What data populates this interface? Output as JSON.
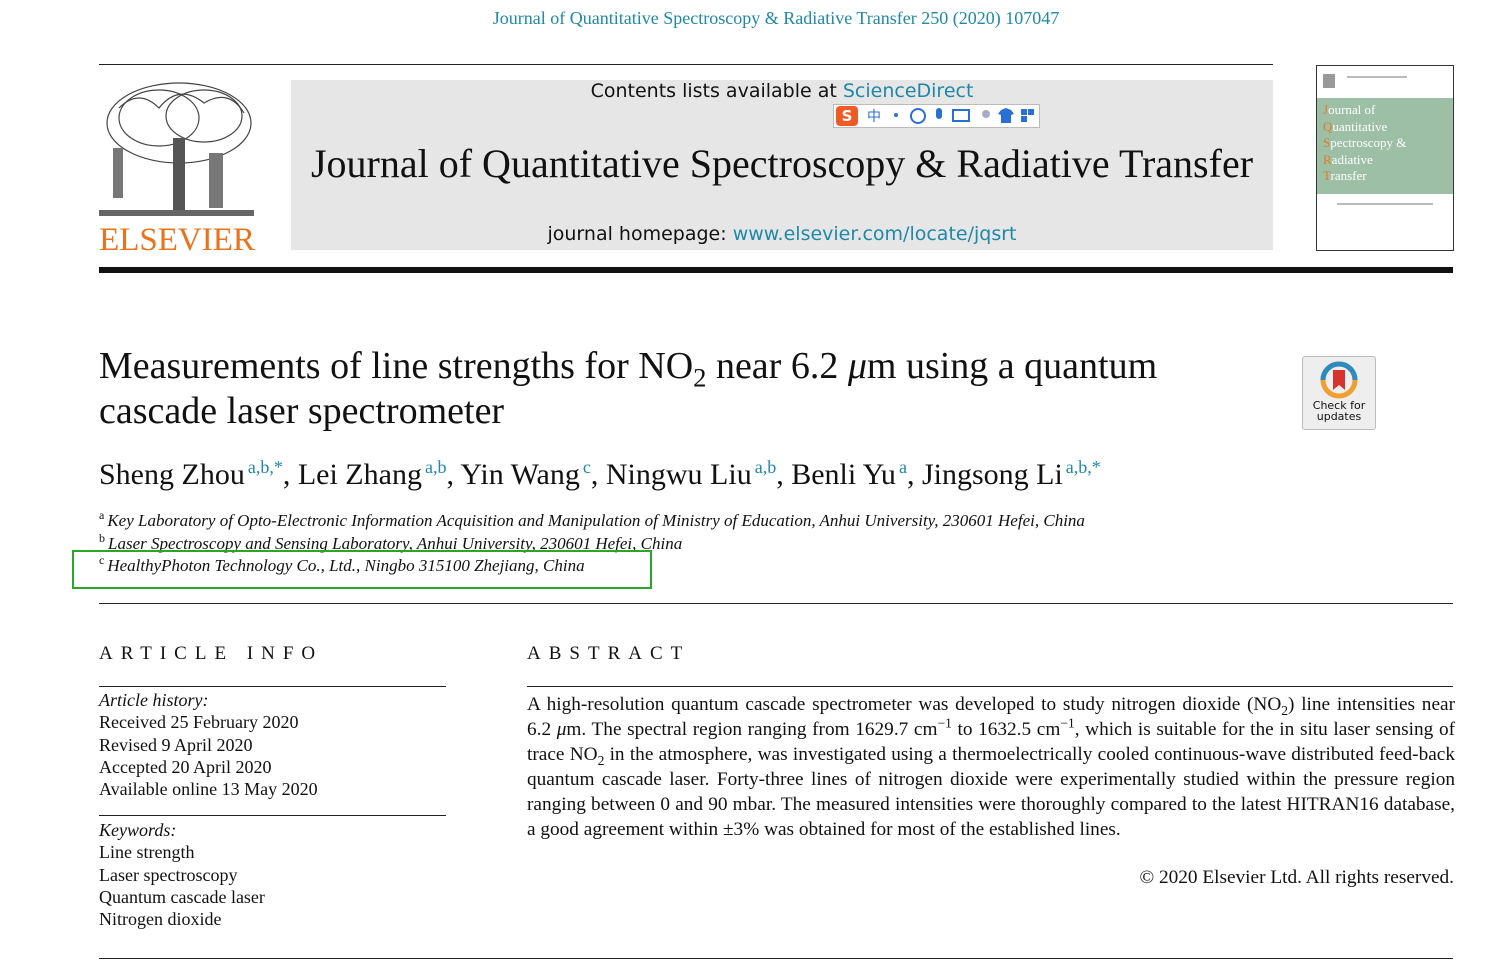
{
  "header": {
    "citation": "Journal of Quantitative Spectroscopy & Radiative Transfer 250 (2020) 107047",
    "contents_prefix": "Contents lists available at",
    "contents_link": "ScienceDirect",
    "ime_label": "中",
    "journal_title": "Journal of Quantitative Spectroscopy & Radiative Transfer",
    "homepage_prefix": "journal homepage:",
    "homepage_link": "www.elsevier.com/locate/jqsrt",
    "publisher": "ELSEVIER",
    "cover_lines": [
      "Journal of",
      "Quantitative",
      "Spectroscopy &",
      "Radiative",
      "Transfer"
    ]
  },
  "article": {
    "title_parts": [
      "Measurements of line strengths for NO",
      "2",
      " near 6.2 ",
      "μ",
      "m using a quantum cascade laser spectrometer"
    ],
    "check_updates": [
      "Check for",
      "updates"
    ],
    "author_separator": ", ",
    "authors": [
      {
        "name": "Sheng Zhou",
        "affil": "a,b,",
        "star": "*"
      },
      {
        "name": "Lei Zhang",
        "affil": "a,b"
      },
      {
        "name": "Yin Wang",
        "affil": "c"
      },
      {
        "name": "Ningwu Liu",
        "affil": "a,b"
      },
      {
        "name": "Benli Yu",
        "affil": "a"
      },
      {
        "name": "Jingsong Li",
        "affil": "a,b,",
        "star": "*"
      }
    ],
    "affiliations": [
      {
        "mark": "a",
        "text": "Key Laboratory of Opto-Electronic Information Acquisition and Manipulation of Ministry of Education, Anhui University, 230601 Hefei, China"
      },
      {
        "mark": "b",
        "text": "Laser Spectroscopy and Sensing Laboratory, Anhui University, 230601 Hefei, China"
      },
      {
        "mark": "c",
        "text": "HealthyPhoton Technology Co., Ltd., Ningbo 315100 Zhejiang, China"
      }
    ]
  },
  "article_info": {
    "heading": "ARTICLE INFO",
    "history_label": "Article history:",
    "history": [
      "Received 25 February 2020",
      "Revised 9 April 2020",
      "Accepted 20 April 2020",
      "Available online 13 May 2020"
    ],
    "keywords_label": "Keywords:",
    "keywords": [
      "Line strength",
      "Laser spectroscopy",
      "Quantum cascade laser",
      "Nitrogen dioxide"
    ]
  },
  "abstract": {
    "heading": "ABSTRACT",
    "parts": [
      "A high-resolution quantum cascade spectrometer was developed to study nitrogen dioxide (NO",
      "2",
      ") line intensities near 6.2 ",
      "μ",
      "m. The spectral region ranging from 1629.7 cm",
      "−1",
      " to 1632.5 cm",
      "−1",
      ", which is suitable for the in situ laser sensing of trace NO",
      "2",
      " in the atmosphere, was investigated using a thermoelectrically cooled continuous-wave distributed feed-back quantum cascade laser. Forty-three lines of nitrogen dioxide were experimentally studied within the pressure region ranging between 0 and 90 mbar. The measured intensities were thoroughly compared to the latest HITRAN16 database, a good agreement within ±3% was obtained for most of the established lines."
    ],
    "copyright": "© 2020 Elsevier Ltd. All rights reserved."
  }
}
